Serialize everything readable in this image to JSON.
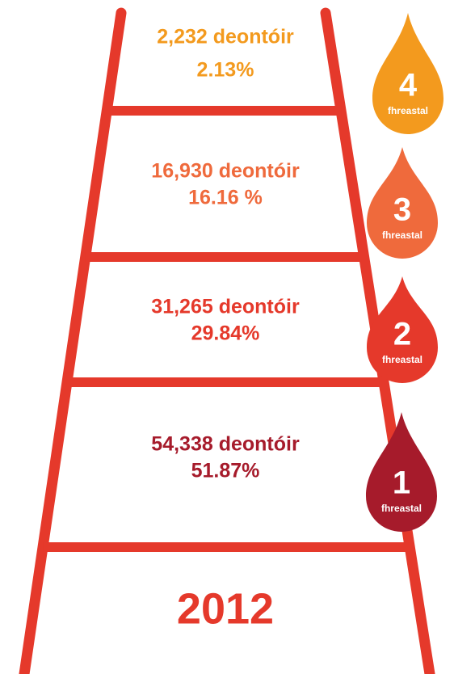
{
  "levels": [
    {
      "donors": "2,232 deontóir",
      "percent": "2.13%",
      "number": "4",
      "label": "fhreastal"
    },
    {
      "donors": "16,930 deontóir",
      "percent": "16.16 %",
      "number": "3",
      "label": "fhreastal"
    },
    {
      "donors": "31,265 deontóir",
      "percent": "29.84%",
      "number": "2",
      "label": "fhreastal"
    },
    {
      "donors": "54,338 deontóir",
      "percent": "51.87%",
      "number": "1",
      "label": "fhreastal"
    }
  ],
  "year": "2012"
}
